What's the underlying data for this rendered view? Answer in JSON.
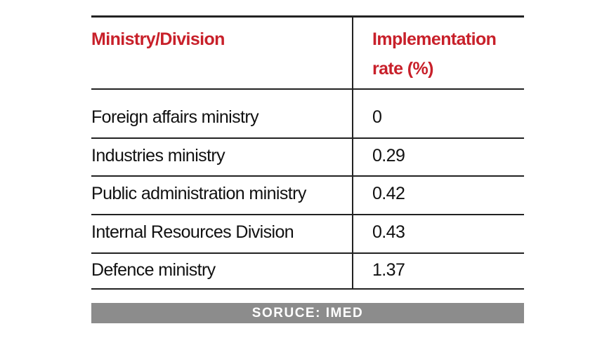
{
  "table": {
    "header": [
      "Ministry/Division",
      "Implementation rate (%)"
    ],
    "rows": [
      [
        "Foreign affairs ministry",
        "0"
      ],
      [
        "Industries ministry",
        "0.29"
      ],
      [
        "Public administration ministry",
        "0.42"
      ],
      [
        "Internal Resources Division",
        "0.43"
      ],
      [
        "Defence ministry",
        "1.37"
      ]
    ]
  },
  "source": "SORUCE: IMED"
}
